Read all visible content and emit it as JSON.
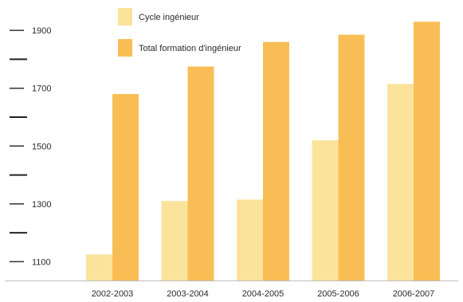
{
  "chart_data": {
    "type": "bar",
    "categories": [
      "2002-2003",
      "2003-2004",
      "2004-2005",
      "2005-2006",
      "2006-2007"
    ],
    "series": [
      {
        "name": "Cycle ingénieur",
        "values": [
          1125,
          1310,
          1315,
          1520,
          1715
        ],
        "color": "#FBE39C"
      },
      {
        "name": "Total formation d'ingénieur",
        "values": [
          1680,
          1775,
          1860,
          1885,
          1930
        ],
        "color": "#F8BE55"
      }
    ],
    "yticks": [
      {
        "value": 1100,
        "label": "1100"
      },
      {
        "value": 1300,
        "label": "1300"
      },
      {
        "value": 1500,
        "label": "1500"
      },
      {
        "value": 1700,
        "label": "1700"
      },
      {
        "value": 1900,
        "label": "1900"
      }
    ],
    "minor_ticks": [
      1200,
      1400,
      1600,
      1800
    ],
    "ylim": [
      1035,
      1950
    ],
    "legend_position": "top-left",
    "grid": false
  }
}
